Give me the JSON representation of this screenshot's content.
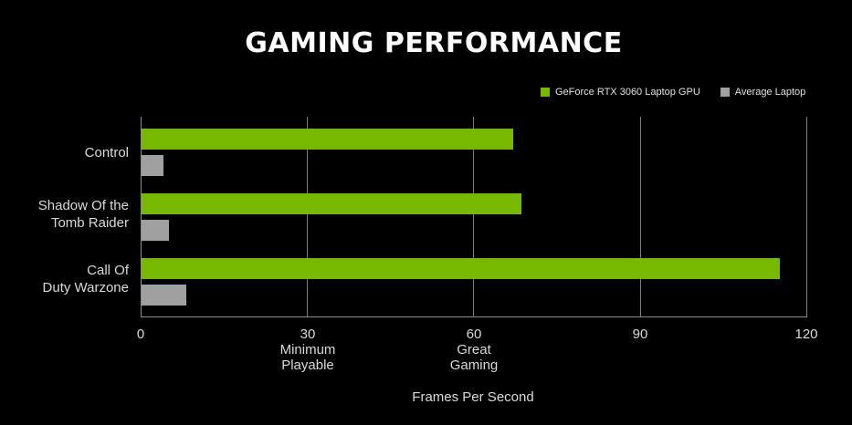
{
  "title": "GAMING PERFORMANCE",
  "colors": {
    "rtx3060": "#76b900",
    "average": "#a0a0a0",
    "background": "#000000",
    "grid": "#7a7a7a",
    "text": "#d9d9d9"
  },
  "legend": [
    {
      "label": "GeForce RTX 3060 Laptop GPU",
      "color": "#76b900"
    },
    {
      "label": "Average Laptop",
      "color": "#a0a0a0"
    }
  ],
  "categories": [
    {
      "line1": "Control",
      "line2": ""
    },
    {
      "line1": "Shadow Of the",
      "line2": "Tomb Raider"
    },
    {
      "line1": "Call Of",
      "line2": "Duty Warzone"
    }
  ],
  "ticks": [
    {
      "value": "0",
      "sub1": "",
      "sub2": ""
    },
    {
      "value": "30",
      "sub1": "Minimum",
      "sub2": "Playable"
    },
    {
      "value": "60",
      "sub1": "Great",
      "sub2": "Gaming"
    },
    {
      "value": "90",
      "sub1": "",
      "sub2": ""
    },
    {
      "value": "120",
      "sub1": "",
      "sub2": ""
    }
  ],
  "xlabel": "Frames Per Second",
  "chart_data": {
    "type": "bar",
    "orientation": "horizontal",
    "title": "GAMING PERFORMANCE",
    "categories": [
      "Control",
      "Shadow Of the Tomb Raider",
      "Call Of Duty Warzone"
    ],
    "series": [
      {
        "name": "GeForce RTX 3060 Laptop GPU",
        "color": "#76b900",
        "values": [
          67,
          68.5,
          115
        ]
      },
      {
        "name": "Average Laptop",
        "color": "#a0a0a0",
        "values": [
          4,
          5,
          8
        ]
      }
    ],
    "xlabel": "Frames Per Second",
    "ylabel": "",
    "xlim": [
      0,
      120
    ],
    "xticks": [
      0,
      30,
      60,
      90,
      120
    ],
    "xtick_annotations": {
      "30": "Minimum Playable",
      "60": "Great Gaming"
    },
    "grid": {
      "vertical": true,
      "horizontal": false
    },
    "legend_position": "top-right"
  }
}
